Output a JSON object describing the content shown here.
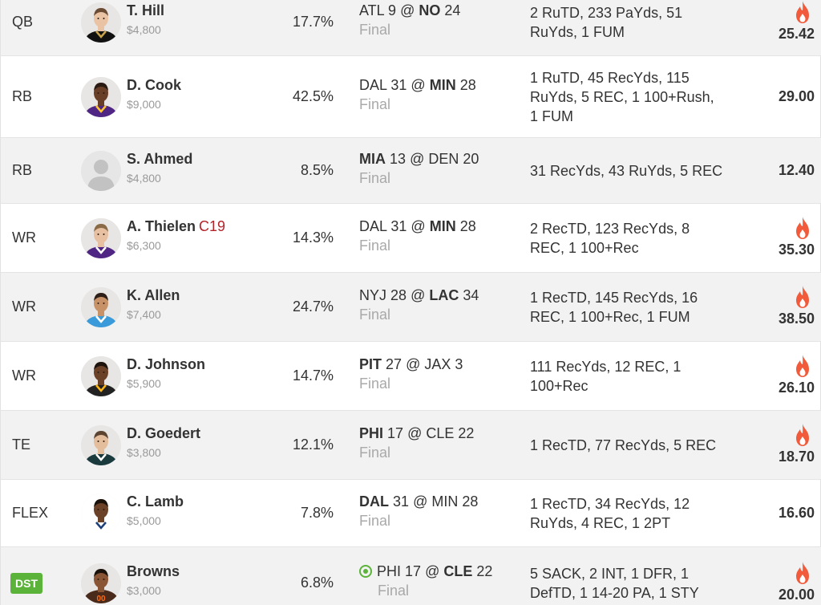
{
  "colors": {
    "hot": "#f15a3a",
    "dst_badge": "#5bb33a",
    "tag": "#b3232a",
    "final": "#a9a9a9"
  },
  "players": [
    {
      "position": "QB",
      "name": "T. Hill",
      "tag": "",
      "salary": "$4,800",
      "ownership": "17.7%",
      "away": "ATL",
      "away_score": "9",
      "at": "@",
      "home": "NO",
      "home_score": "24",
      "winner": "home",
      "status": "Final",
      "stats": [
        "2 RuTD, 233 PaYds, 51",
        "RuYds, 1 FUM"
      ],
      "points": "25.42",
      "hot": true,
      "avatar": "qb-hill"
    },
    {
      "position": "RB",
      "name": "D. Cook",
      "tag": "",
      "salary": "$9,000",
      "ownership": "42.5%",
      "away": "DAL",
      "away_score": "31",
      "at": "@",
      "home": "MIN",
      "home_score": "28",
      "winner": "home",
      "status": "Final",
      "stats": [
        "1 RuTD, 45 RecYds, 115",
        "RuYds, 5 REC, 1 100+Rush,",
        "1 FUM"
      ],
      "points": "29.00",
      "hot": false,
      "avatar": "rb-cook"
    },
    {
      "position": "RB",
      "name": "S. Ahmed",
      "tag": "",
      "salary": "$4,800",
      "ownership": "8.5%",
      "away": "MIA",
      "away_score": "13",
      "at": "@",
      "home": "DEN",
      "home_score": "20",
      "winner": "away",
      "status": "Final",
      "stats": [
        "31 RecYds, 43 RuYds, 5 REC"
      ],
      "points": "12.40",
      "hot": false,
      "avatar": "placeholder"
    },
    {
      "position": "WR",
      "name": "A. Thielen",
      "tag": "C19",
      "salary": "$6,300",
      "ownership": "14.3%",
      "away": "DAL",
      "away_score": "31",
      "at": "@",
      "home": "MIN",
      "home_score": "28",
      "winner": "home",
      "status": "Final",
      "stats": [
        "2 RecTD, 123 RecYds, 8",
        "REC, 1 100+Rec"
      ],
      "points": "35.30",
      "hot": true,
      "avatar": "wr-thielen"
    },
    {
      "position": "WR",
      "name": "K. Allen",
      "tag": "",
      "salary": "$7,400",
      "ownership": "24.7%",
      "away": "NYJ",
      "away_score": "28",
      "at": "@",
      "home": "LAC",
      "home_score": "34",
      "winner": "home",
      "status": "Final",
      "stats": [
        "1 RecTD, 145 RecYds, 16",
        "REC, 1 100+Rec, 1 FUM"
      ],
      "points": "38.50",
      "hot": true,
      "avatar": "wr-allen"
    },
    {
      "position": "WR",
      "name": "D. Johnson",
      "tag": "",
      "salary": "$5,900",
      "ownership": "14.7%",
      "away": "PIT",
      "away_score": "27",
      "at": "@",
      "home": "JAX",
      "home_score": "3",
      "winner": "away",
      "status": "Final",
      "stats": [
        "111 RecYds, 12 REC, 1",
        "100+Rec"
      ],
      "points": "26.10",
      "hot": true,
      "avatar": "wr-johnson"
    },
    {
      "position": "TE",
      "name": "D. Goedert",
      "tag": "",
      "salary": "$3,800",
      "ownership": "12.1%",
      "away": "PHI",
      "away_score": "17",
      "at": "@",
      "home": "CLE",
      "home_score": "22",
      "winner": "away",
      "status": "Final",
      "stats": [
        "1 RecTD, 77 RecYds, 5 REC"
      ],
      "points": "18.70",
      "hot": true,
      "avatar": "te-goedert"
    },
    {
      "position": "FLEX",
      "name": "C. Lamb",
      "tag": "",
      "salary": "$5,000",
      "ownership": "7.8%",
      "away": "DAL",
      "away_score": "31",
      "at": "@",
      "home": "MIN",
      "home_score": "28",
      "winner": "away",
      "status": "Final",
      "stats": [
        "1 RecTD, 34 RecYds, 12",
        "RuYds, 4 REC, 1 2PT"
      ],
      "points": "16.60",
      "hot": false,
      "avatar": "flex-lamb"
    },
    {
      "position": "DST",
      "name": "Browns",
      "tag": "",
      "salary": "$3,000",
      "ownership": "6.8%",
      "away": "PHI",
      "away_score": "17",
      "at": "@",
      "home": "CLE",
      "home_score": "22",
      "winner": "home",
      "status": "Final",
      "stats": [
        "5 SACK, 2 INT, 1 DFR, 1",
        "DefTD, 1 14-20 PA, 1 STY"
      ],
      "points": "20.00",
      "hot": true,
      "avatar": "dst-browns",
      "badge": true,
      "live_icon": true
    }
  ]
}
